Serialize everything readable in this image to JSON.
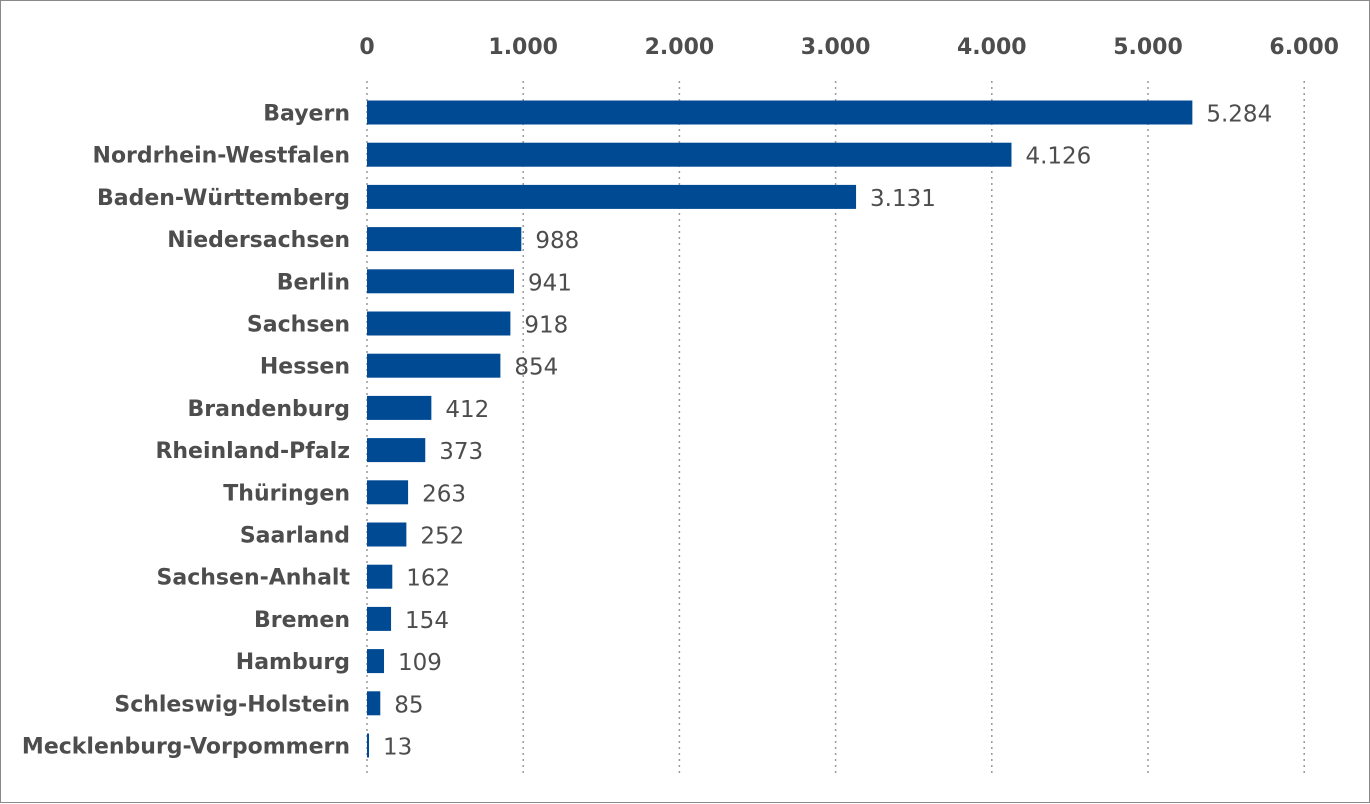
{
  "chart_data": {
    "type": "bar",
    "orientation": "horizontal",
    "title": "",
    "xlabel": "",
    "ylabel": "",
    "xlim": [
      0,
      6000
    ],
    "ticks": [
      0,
      1000,
      2000,
      3000,
      4000,
      5000,
      6000
    ],
    "tick_labels": [
      "0",
      "1.000",
      "2.000",
      "3.000",
      "4.000",
      "5.000",
      "6.000"
    ],
    "grid": true,
    "legend": "none",
    "bar_color": "#004a93",
    "categories": [
      "Bayern",
      "Nordrhein-Westfalen",
      "Baden-Württemberg",
      "Niedersachsen",
      "Berlin",
      "Sachsen",
      "Hessen",
      "Brandenburg",
      "Rheinland-Pfalz",
      "Thüringen",
      "Saarland",
      "Sachsen-Anhalt",
      "Bremen",
      "Hamburg",
      "Schleswig-Holstein",
      "Mecklenburg-Vorpommern"
    ],
    "values": [
      5284,
      4126,
      3131,
      988,
      941,
      918,
      854,
      412,
      373,
      263,
      252,
      162,
      154,
      109,
      85,
      13
    ],
    "value_labels": [
      "5.284",
      "4.126",
      "3.131",
      "988",
      "941",
      "918",
      "854",
      "412",
      "373",
      "263",
      "252",
      "162",
      "154",
      "109",
      "85",
      "13"
    ]
  }
}
